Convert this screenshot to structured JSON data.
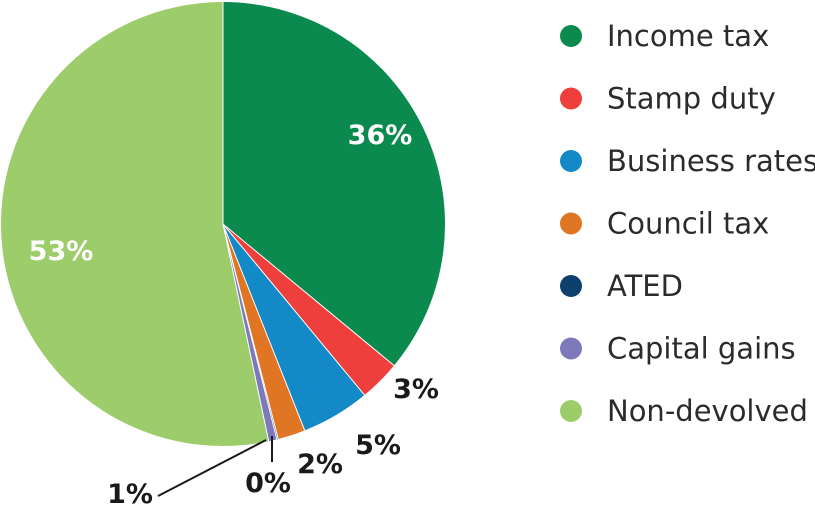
{
  "chart_data": {
    "type": "pie",
    "title": "",
    "legend_position": "right",
    "start_angle_deg": 0,
    "direction": "clockwise",
    "slices": [
      {
        "name": "Income tax",
        "value": 36,
        "label": "36%",
        "color": "#0a8a4e",
        "label_style": "inside"
      },
      {
        "name": "Stamp duty",
        "value": 3,
        "label": "3%",
        "color": "#ee3f3c",
        "label_style": "outside"
      },
      {
        "name": "Business rates",
        "value": 5,
        "label": "5%",
        "color": "#1489c8",
        "label_style": "outside"
      },
      {
        "name": "Council tax",
        "value": 2,
        "label": "2%",
        "color": "#e07524",
        "label_style": "outside"
      },
      {
        "name": "ATED",
        "value": 0.1,
        "label": "0%",
        "color": "#0f3f6d",
        "label_style": "leader"
      },
      {
        "name": "Capital gains",
        "value": 0.6,
        "label": "1%",
        "color": "#7d79bb",
        "label_style": "leader"
      },
      {
        "name": "Non-devolved",
        "value": 53.3,
        "label": "53%",
        "color": "#9dcd6b",
        "label_style": "inside"
      }
    ]
  }
}
